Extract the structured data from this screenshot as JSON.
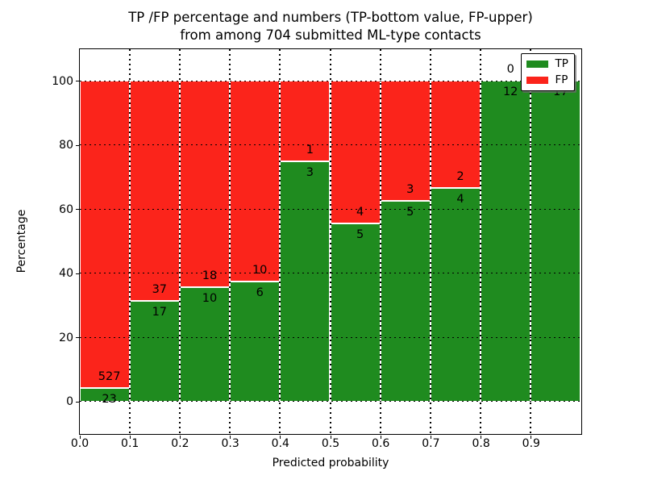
{
  "figure": {
    "title_line1": "TP /FP percentage and numbers (TP-bottom value, FP-upper)",
    "title_line2": "from among 704 submitted ML-type contacts"
  },
  "chart_data": {
    "type": "bar",
    "stacked": true,
    "title": "TP /FP percentage and numbers (TP-bottom value, FP-upper)\nfrom among 704 submitted ML-type contacts",
    "xlabel": "Predicted probability",
    "ylabel": "Percentage",
    "xlim": [
      0.0,
      1.0
    ],
    "ylim": [
      -10,
      110
    ],
    "grid": "dotted black, horizontal and vertical, drawn over bars",
    "legend_position": "upper right",
    "total_contacts": 704,
    "bin_width": 0.1,
    "bin_starts": [
      0.0,
      0.1,
      0.2,
      0.3,
      0.4,
      0.5,
      0.6,
      0.7,
      0.8,
      0.9
    ],
    "xtick_labels": [
      "0.0",
      "0.1",
      "0.2",
      "0.3",
      "0.4",
      "0.5",
      "0.6",
      "0.7",
      "0.8",
      "0.9"
    ],
    "ytick_values": [
      0,
      20,
      40,
      60,
      80,
      100
    ],
    "series": [
      {
        "name": "TP",
        "color": "#1f8b1f",
        "counts": [
          23,
          17,
          10,
          6,
          3,
          5,
          5,
          4,
          12,
          17
        ],
        "percentages": [
          4.18,
          31.48,
          35.71,
          37.5,
          75.0,
          55.56,
          62.5,
          66.67,
          100.0,
          100.0
        ]
      },
      {
        "name": "FP",
        "color": "#fb241b",
        "counts": [
          527,
          37,
          18,
          10,
          1,
          4,
          3,
          2,
          0,
          0
        ],
        "percentages": [
          95.82,
          68.52,
          64.29,
          62.5,
          25.0,
          44.44,
          37.5,
          33.33,
          0.0,
          0.0
        ]
      }
    ]
  }
}
